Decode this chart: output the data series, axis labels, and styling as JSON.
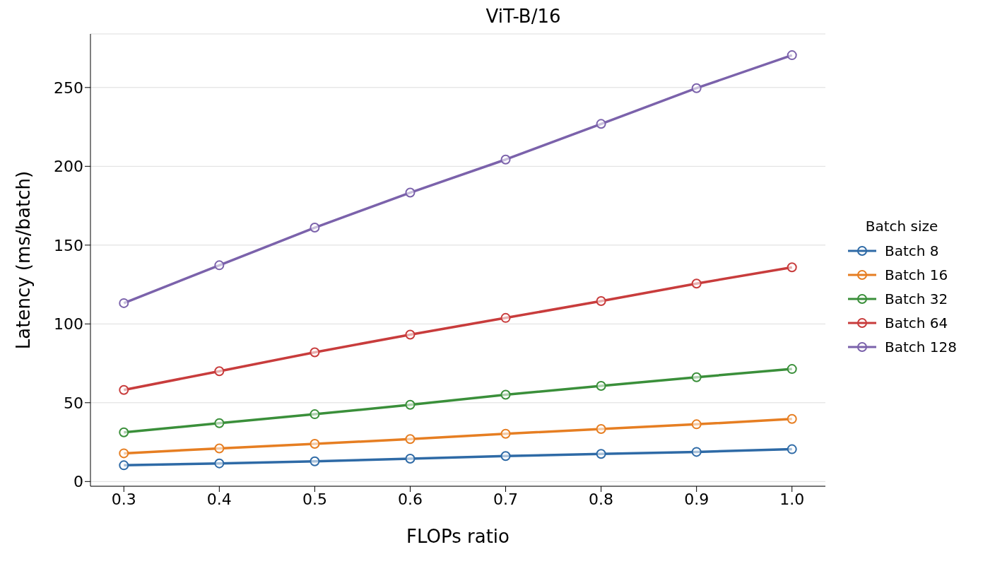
{
  "chart_data": {
    "type": "line",
    "title": "ViT-B/16",
    "xlabel": "FLOPs ratio",
    "ylabel": "Latency (ms/batch)",
    "legend_title": "Batch size",
    "x": [
      0.3,
      0.4,
      0.5,
      0.6,
      0.7,
      0.8,
      0.9,
      1.0
    ],
    "series": [
      {
        "name": "Batch 8",
        "color": "#2e6aa6",
        "values": [
          10.3,
          11.5,
          12.8,
          14.5,
          16.2,
          17.5,
          18.8,
          20.5
        ]
      },
      {
        "name": "Batch 16",
        "color": "#e67e22",
        "values": [
          17.9,
          21,
          23.9,
          26.9,
          30.3,
          33.3,
          36.3,
          39.7
        ]
      },
      {
        "name": "Batch 32",
        "color": "#3a8f3a",
        "values": [
          31.2,
          37,
          42.7,
          48.7,
          55.1,
          60.7,
          66.2,
          71.4
        ]
      },
      {
        "name": "Batch 64",
        "color": "#c83c3c",
        "values": [
          58.1,
          70,
          82,
          93.2,
          103.8,
          114.5,
          125.6,
          135.9
        ]
      },
      {
        "name": "Batch 128",
        "color": "#7b62ab",
        "values": [
          113.2,
          137.2,
          161.1,
          183.3,
          204.3,
          226.9,
          249.6,
          270.5
        ]
      }
    ],
    "xlim": [
      0.265,
      1.035
    ],
    "xticks": [
      {
        "value": 0.3,
        "label": "0.3"
      },
      {
        "value": 0.4,
        "label": "0.4"
      },
      {
        "value": 0.5,
        "label": "0.5"
      },
      {
        "value": 0.6,
        "label": "0.6"
      },
      {
        "value": 0.7,
        "label": "0.7"
      },
      {
        "value": 0.8,
        "label": "0.8"
      },
      {
        "value": 0.9,
        "label": "0.9"
      },
      {
        "value": 1.0,
        "label": "1.0"
      }
    ],
    "ylim": [
      -3,
      284
    ],
    "yticks": [
      0,
      50,
      100,
      150,
      200,
      250
    ],
    "grid": "y",
    "legend": "right",
    "marker": "circle",
    "line_style": "solid"
  }
}
